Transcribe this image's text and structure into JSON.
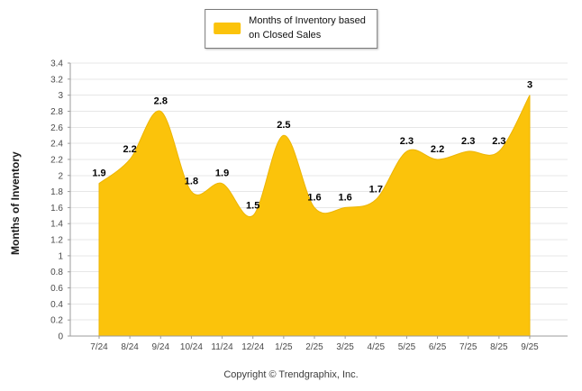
{
  "legend": {
    "lines": [
      "Months of Inventory based",
      "on Closed Sales"
    ]
  },
  "footer": {
    "copyright": "Copyright © Trendgraphix, Inc."
  },
  "chart_data": {
    "type": "area",
    "title": "",
    "series_name": "Months of Inventory based on Closed Sales",
    "categories": [
      "7/24",
      "8/24",
      "9/24",
      "10/24",
      "11/24",
      "12/24",
      "1/25",
      "2/25",
      "3/25",
      "4/25",
      "5/25",
      "6/25",
      "7/25",
      "8/25",
      "9/25"
    ],
    "values": [
      1.9,
      2.2,
      2.8,
      1.8,
      1.9,
      1.5,
      2.5,
      1.6,
      1.6,
      1.7,
      2.3,
      2.2,
      2.3,
      2.3,
      3
    ],
    "xlabel": "",
    "ylabel": "Months of Inventory",
    "ylim": [
      0,
      3.4
    ],
    "ytick_step": 0.2,
    "grid": true,
    "legend_position": "top-center",
    "colors": {
      "fill": "#FBC30B",
      "stroke": "#EDB503",
      "grid": "#E7E7E7",
      "axis": "#9B9B9B",
      "tick_label": "#4A4A4A",
      "data_label": "#000000"
    }
  }
}
